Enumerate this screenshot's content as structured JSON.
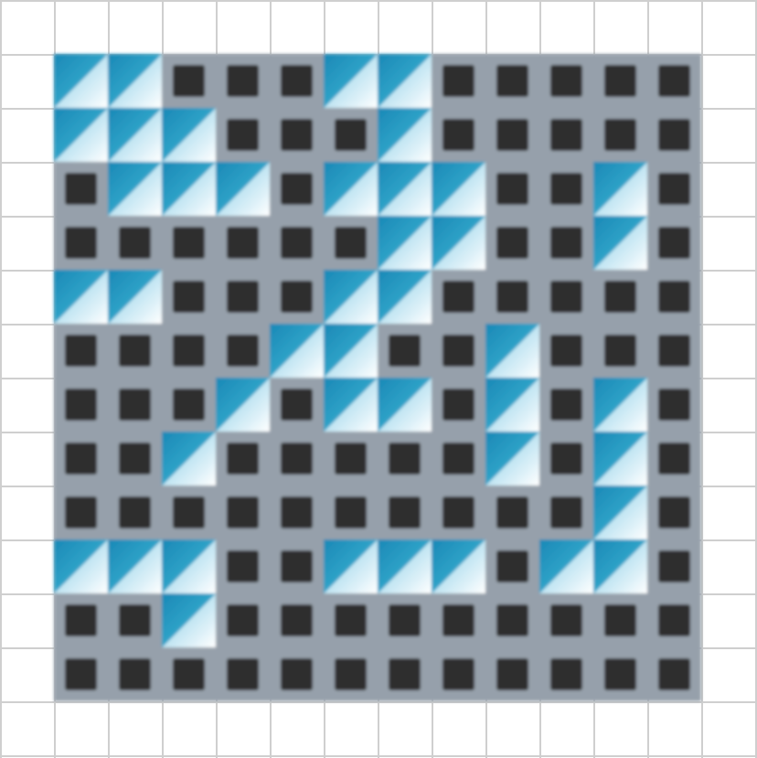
{
  "board": {
    "rows": 12,
    "cols": 12,
    "legend": {
      "#": "dark-square-tile",
      "/": "blue-diagonal-tile"
    },
    "cells": [
      "//###//#####",
      "///###/#####",
      "#///#///##/#",
      "######//##/#",
      "//###//#####",
      "####//##/###",
      "###/#//#/#/#",
      "##/#####/#/#",
      "##########/#",
      "///##///#//#",
      "##/#########",
      "############"
    ]
  },
  "colors": {
    "page_background": "#ffffff",
    "grid_line": "#cfcfcf",
    "tile_background": "#96a0ab",
    "dark_square": "#2e2e2e",
    "blue_dark": "#1a88b6",
    "blue_light": "#ffffff"
  },
  "icons": {
    "dark_tile": "dark-square-tile-icon",
    "blue_tile": "blue-diagonal-tile-icon"
  }
}
